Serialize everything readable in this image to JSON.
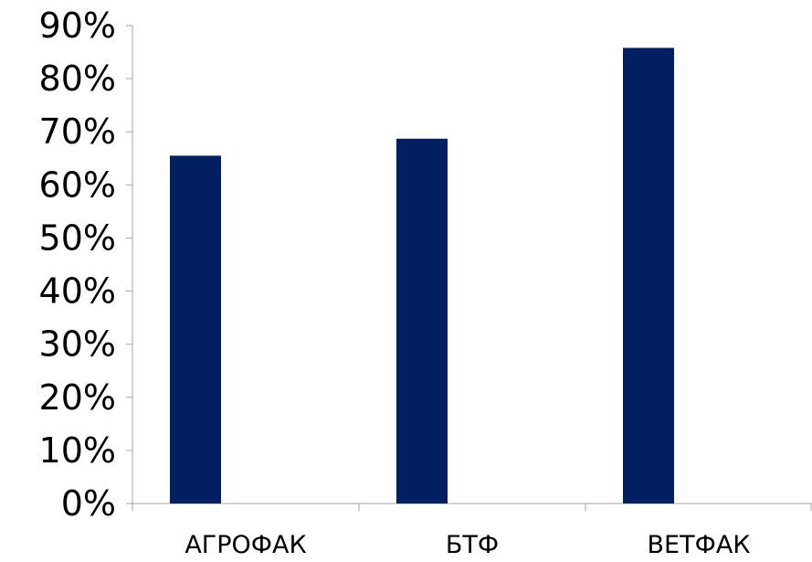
{
  "chart_data": {
    "type": "bar",
    "categories": [
      "АГРОФАК",
      "БТФ",
      "ВЕТФАК"
    ],
    "values": [
      65.5,
      68.7,
      85.8
    ],
    "ylim": [
      0,
      90
    ],
    "yticks": [
      "0%",
      "10%",
      "20%",
      "30%",
      "40%",
      "50%",
      "60%",
      "70%",
      "80%",
      "90%"
    ],
    "grid": false,
    "legend": "none",
    "bar_color": "#022061",
    "axis_color": "#a6a6a6"
  }
}
